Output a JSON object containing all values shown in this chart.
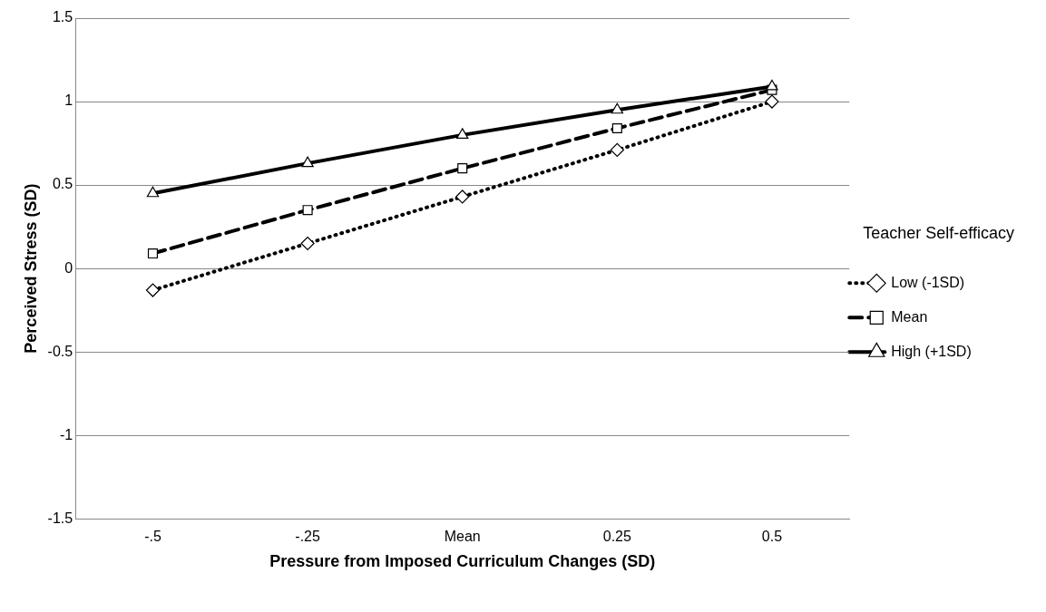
{
  "chart_data": {
    "type": "line",
    "xlabel": "Pressure from Imposed Curriculum Changes (SD)",
    "ylabel": "Perceived Stress (SD)",
    "legend_title": "Teacher Self-efficacy",
    "categories": [
      "-.5",
      "-.25",
      "Mean",
      "0.25",
      "0.5"
    ],
    "series": [
      {
        "name": "Low (-1SD)",
        "color": "#000000",
        "marker": "diamond",
        "line_style": "dotted",
        "values": [
          -0.13,
          0.15,
          0.43,
          0.71,
          1.0
        ]
      },
      {
        "name": "Mean",
        "color": "#000000",
        "marker": "square",
        "line_style": "dashed",
        "values": [
          0.09,
          0.35,
          0.6,
          0.84,
          1.07
        ]
      },
      {
        "name": "High (+1SD)",
        "color": "#000000",
        "marker": "triangle",
        "line_style": "solid",
        "values": [
          0.45,
          0.63,
          0.8,
          0.95,
          1.09
        ]
      }
    ],
    "ylim": [
      -1.5,
      1.5
    ],
    "yticks": [
      -1.5,
      -1,
      -0.5,
      0,
      0.5,
      1,
      1.5
    ],
    "grid": "y",
    "legend": "right"
  }
}
